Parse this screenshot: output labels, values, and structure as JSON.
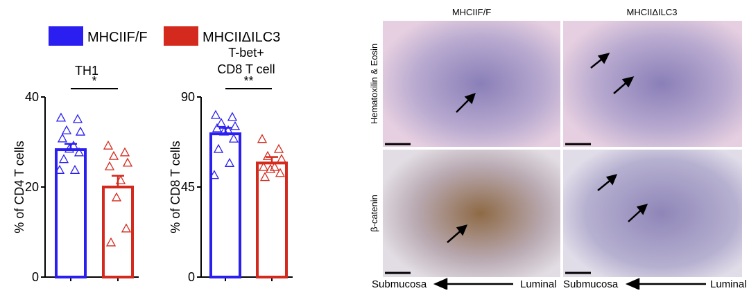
{
  "chart_data": [
    {
      "type": "bar",
      "title": "TH1",
      "ylabel": "% of CD4 T cells",
      "significance": "*",
      "ylim": [
        0,
        40
      ],
      "yticks": [
        0,
        20,
        40
      ],
      "series": [
        {
          "name": "MHCIIF/F",
          "color": "#2a1ff0",
          "values": [
            28.3
          ],
          "errors": [
            1.3
          ],
          "points": [
            35.4,
            35.1,
            32.6,
            32.3,
            30.8,
            29.2,
            28.5,
            27.7,
            26.2,
            23.8,
            23.8
          ]
        },
        {
          "name": "MHCIIΔILC3",
          "color": "#d42a1e",
          "values": [
            20
          ],
          "errors": [
            2.5
          ],
          "points": [
            29.2,
            27.7,
            26.9,
            25.4,
            24.6,
            21.5,
            17.7,
            10.8,
            7.7
          ]
        }
      ]
    },
    {
      "type": "bar",
      "title": [
        "T-bet+",
        "CD8 T cell"
      ],
      "ylabel": "% of CD8 T cells",
      "significance": "**",
      "ylim": [
        0,
        90
      ],
      "yticks": [
        0,
        45,
        90
      ],
      "series": [
        {
          "color": "#2a1ff0",
          "values": [
            71.6
          ],
          "errors": [
            3
          ],
          "points": [
            81,
            80,
            77,
            75.4,
            74.4,
            73.4,
            72.7,
            69.2,
            64,
            57,
            51
          ]
        },
        {
          "color": "#d42a1e",
          "values": [
            57
          ],
          "errors": [
            3
          ],
          "points": [
            69,
            64,
            60.5,
            59,
            55,
            55,
            54,
            52,
            50
          ]
        }
      ]
    }
  ],
  "figure_panel": {
    "columns": [
      "MHCIIF/F",
      "MHCIIΔILC3"
    ],
    "rows": [
      "Hematoxilin & Eosin",
      "β-catenin"
    ],
    "bottom": [
      [
        "Submucosa",
        "Luminal"
      ],
      [
        "Submucosa",
        "Luminal"
      ]
    ]
  }
}
